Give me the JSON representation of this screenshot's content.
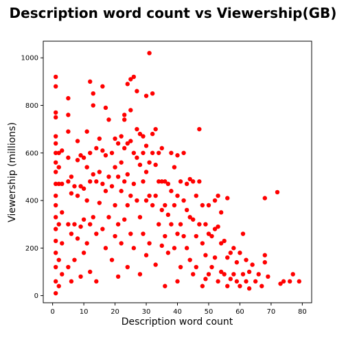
{
  "chart_data": {
    "type": "scatter",
    "title": "Description word count vs Viewership(GB)",
    "xlabel": "Description word count",
    "ylabel": "Viewership (millions)",
    "xlim": [
      -3,
      83
    ],
    "ylim": [
      -30,
      1070
    ],
    "xticks": [
      "0",
      "10",
      "20",
      "30",
      "40",
      "50",
      "60",
      "70",
      "80"
    ],
    "yticks": [
      "0",
      "200",
      "400",
      "600",
      "800",
      "1000"
    ],
    "grid": false,
    "legend": "none",
    "marker_color": "#ff0000",
    "points": [
      [
        1,
        920
      ],
      [
        1,
        880
      ],
      [
        1,
        770
      ],
      [
        1,
        750
      ],
      [
        1,
        670
      ],
      [
        1,
        640
      ],
      [
        1,
        600
      ],
      [
        1,
        560
      ],
      [
        1,
        520
      ],
      [
        1,
        470
      ],
      [
        1,
        420
      ],
      [
        1,
        380
      ],
      [
        1,
        330
      ],
      [
        1,
        280
      ],
      [
        1,
        230
      ],
      [
        1,
        180
      ],
      [
        1,
        120
      ],
      [
        1,
        60
      ],
      [
        1,
        10
      ],
      [
        2,
        600
      ],
      [
        2,
        540
      ],
      [
        2,
        470
      ],
      [
        2,
        300
      ],
      [
        2,
        150
      ],
      [
        2,
        40
      ],
      [
        3,
        610
      ],
      [
        3,
        470
      ],
      [
        3,
        350
      ],
      [
        3,
        220
      ],
      [
        3,
        90
      ],
      [
        5,
        830
      ],
      [
        5,
        760
      ],
      [
        5,
        690
      ],
      [
        5,
        580
      ],
      [
        5,
        480
      ],
      [
        5,
        300
      ],
      [
        5,
        120
      ],
      [
        6,
        500
      ],
      [
        6,
        430
      ],
      [
        6,
        260
      ],
      [
        6,
        60
      ],
      [
        7,
        460
      ],
      [
        7,
        300
      ],
      [
        7,
        150
      ],
      [
        8,
        650
      ],
      [
        8,
        570
      ],
      [
        8,
        420
      ],
      [
        8,
        240
      ],
      [
        9,
        590
      ],
      [
        9,
        460
      ],
      [
        9,
        290
      ],
      [
        9,
        80
      ],
      [
        10,
        580
      ],
      [
        10,
        450
      ],
      [
        10,
        320
      ],
      [
        10,
        180
      ],
      [
        11,
        690
      ],
      [
        11,
        540
      ],
      [
        11,
        400
      ],
      [
        11,
        220
      ],
      [
        12,
        900
      ],
      [
        12,
        600
      ],
      [
        12,
        480
      ],
      [
        12,
        300
      ],
      [
        12,
        100
      ],
      [
        13,
        850
      ],
      [
        13,
        800
      ],
      [
        13,
        510
      ],
      [
        13,
        330
      ],
      [
        14,
        620
      ],
      [
        14,
        480
      ],
      [
        14,
        260
      ],
      [
        14,
        60
      ],
      [
        15,
        660
      ],
      [
        15,
        520
      ],
      [
        15,
        390
      ],
      [
        16,
        880
      ],
      [
        16,
        610
      ],
      [
        16,
        470
      ],
      [
        16,
        280
      ],
      [
        17,
        790
      ],
      [
        17,
        590
      ],
      [
        17,
        440
      ],
      [
        17,
        200
      ],
      [
        18,
        740
      ],
      [
        18,
        500
      ],
      [
        18,
        330
      ],
      [
        19,
        600
      ],
      [
        19,
        460
      ],
      [
        19,
        150
      ],
      [
        20,
        660
      ],
      [
        20,
        540
      ],
      [
        20,
        380
      ],
      [
        20,
        250
      ],
      [
        21,
        640
      ],
      [
        21,
        500
      ],
      [
        21,
        300
      ],
      [
        21,
        80
      ],
      [
        22,
        670
      ],
      [
        22,
        560
      ],
      [
        22,
        440
      ],
      [
        22,
        220
      ],
      [
        23,
        760
      ],
      [
        23,
        740
      ],
      [
        23,
        620
      ],
      [
        23,
        480
      ],
      [
        23,
        320
      ],
      [
        24,
        890
      ],
      [
        24,
        640
      ],
      [
        24,
        510
      ],
      [
        24,
        380
      ],
      [
        24,
        120
      ],
      [
        25,
        910
      ],
      [
        25,
        780
      ],
      [
        25,
        650
      ],
      [
        25,
        420
      ],
      [
        25,
        260
      ],
      [
        26,
        920
      ],
      [
        26,
        600
      ],
      [
        26,
        470
      ],
      [
        26,
        200
      ],
      [
        27,
        860
      ],
      [
        27,
        700
      ],
      [
        27,
        580
      ],
      [
        27,
        400
      ],
      [
        28,
        680
      ],
      [
        28,
        550
      ],
      [
        28,
        330
      ],
      [
        28,
        90
      ],
      [
        29,
        670
      ],
      [
        29,
        600
      ],
      [
        29,
        480
      ],
      [
        29,
        260
      ],
      [
        30,
        840
      ],
      [
        30,
        630
      ],
      [
        30,
        520
      ],
      [
        30,
        400
      ],
      [
        30,
        170
      ],
      [
        31,
        1020
      ],
      [
        31,
        560
      ],
      [
        31,
        420
      ],
      [
        31,
        220
      ],
      [
        32,
        850
      ],
      [
        32,
        680
      ],
      [
        32,
        600
      ],
      [
        32,
        380
      ],
      [
        33,
        700
      ],
      [
        33,
        550
      ],
      [
        33,
        420
      ],
      [
        33,
        130
      ],
      [
        34,
        600
      ],
      [
        34,
        480
      ],
      [
        34,
        300
      ],
      [
        35,
        620
      ],
      [
        35,
        480
      ],
      [
        35,
        360
      ],
      [
        35,
        210
      ],
      [
        36,
        480
      ],
      [
        36,
        380
      ],
      [
        36,
        250
      ],
      [
        36,
        40
      ],
      [
        37,
        470
      ],
      [
        37,
        340
      ],
      [
        37,
        180
      ],
      [
        38,
        600
      ],
      [
        38,
        440
      ],
      [
        38,
        300
      ],
      [
        39,
        540
      ],
      [
        39,
        380
      ],
      [
        39,
        200
      ],
      [
        40,
        590
      ],
      [
        40,
        420
      ],
      [
        40,
        260
      ],
      [
        40,
        60
      ],
      [
        41,
        480
      ],
      [
        41,
        300
      ],
      [
        41,
        120
      ],
      [
        42,
        600
      ],
      [
        42,
        400
      ],
      [
        42,
        250
      ],
      [
        43,
        470
      ],
      [
        43,
        360
      ],
      [
        43,
        200
      ],
      [
        44,
        490
      ],
      [
        44,
        330
      ],
      [
        44,
        150
      ],
      [
        45,
        480
      ],
      [
        45,
        320
      ],
      [
        45,
        90
      ],
      [
        46,
        420
      ],
      [
        46,
        250
      ],
      [
        46,
        120
      ],
      [
        47,
        700
      ],
      [
        47,
        480
      ],
      [
        47,
        300
      ],
      [
        48,
        380
      ],
      [
        48,
        220
      ],
      [
        48,
        40
      ],
      [
        49,
        300
      ],
      [
        49,
        170
      ],
      [
        49,
        70
      ],
      [
        50,
        380
      ],
      [
        50,
        260
      ],
      [
        50,
        90
      ],
      [
        51,
        250
      ],
      [
        51,
        120
      ],
      [
        52,
        400
      ],
      [
        52,
        280
      ],
      [
        52,
        160
      ],
      [
        53,
        420
      ],
      [
        53,
        290
      ],
      [
        53,
        60
      ],
      [
        54,
        350
      ],
      [
        54,
        220
      ],
      [
        54,
        100
      ],
      [
        55,
        230
      ],
      [
        55,
        90
      ],
      [
        56,
        410
      ],
      [
        56,
        160
      ],
      [
        56,
        40
      ],
      [
        57,
        180
      ],
      [
        57,
        70
      ],
      [
        58,
        200
      ],
      [
        58,
        90
      ],
      [
        59,
        140
      ],
      [
        59,
        60
      ],
      [
        60,
        180
      ],
      [
        60,
        40
      ],
      [
        61,
        260
      ],
      [
        61,
        90
      ],
      [
        62,
        150
      ],
      [
        62,
        60
      ],
      [
        63,
        100
      ],
      [
        63,
        30
      ],
      [
        64,
        130
      ],
      [
        65,
        60
      ],
      [
        66,
        90
      ],
      [
        67,
        40
      ],
      [
        68,
        410
      ],
      [
        68,
        170
      ],
      [
        68,
        140
      ],
      [
        69,
        80
      ],
      [
        72,
        435
      ],
      [
        73,
        50
      ],
      [
        74,
        60
      ],
      [
        76,
        60
      ],
      [
        77,
        90
      ],
      [
        79,
        60
      ]
    ]
  }
}
